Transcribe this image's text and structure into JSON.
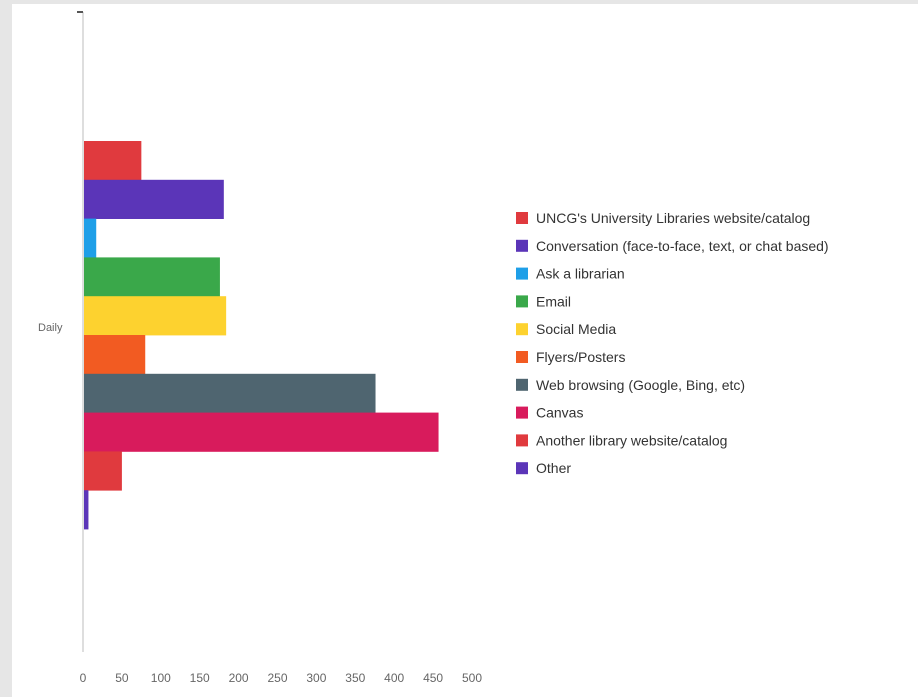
{
  "chart_data": {
    "type": "bar",
    "orientation": "horizontal",
    "title": "",
    "xlabel": "",
    "ylabel": "",
    "categories": [
      "Daily"
    ],
    "xlim": [
      0,
      500
    ],
    "xticks": [
      0,
      50,
      100,
      150,
      200,
      250,
      300,
      350,
      400,
      450,
      500
    ],
    "grid": false,
    "legend_position": "right",
    "series": [
      {
        "name": "UNCG's University Libraries website/catalog",
        "values": [
          75
        ],
        "color": "#e03a3e"
      },
      {
        "name": "Conversation (face-to-face, text, or chat based)",
        "values": [
          181
        ],
        "color": "#5b35b8"
      },
      {
        "name": "Ask a librarian",
        "values": [
          17
        ],
        "color": "#1e9fe8"
      },
      {
        "name": "Email",
        "values": [
          176
        ],
        "color": "#3aa84a"
      },
      {
        "name": "Social Media",
        "values": [
          184
        ],
        "color": "#fdd22f"
      },
      {
        "name": "Flyers/Posters",
        "values": [
          80
        ],
        "color": "#f25b22"
      },
      {
        "name": "Web browsing (Google, Bing, etc)",
        "values": [
          376
        ],
        "color": "#4f6570"
      },
      {
        "name": "Canvas",
        "values": [
          457
        ],
        "color": "#d81b5c"
      },
      {
        "name": "Another library website/catalog",
        "values": [
          50
        ],
        "color": "#e03a3e"
      },
      {
        "name": "Other",
        "values": [
          7
        ],
        "color": "#5b35b8"
      }
    ]
  }
}
